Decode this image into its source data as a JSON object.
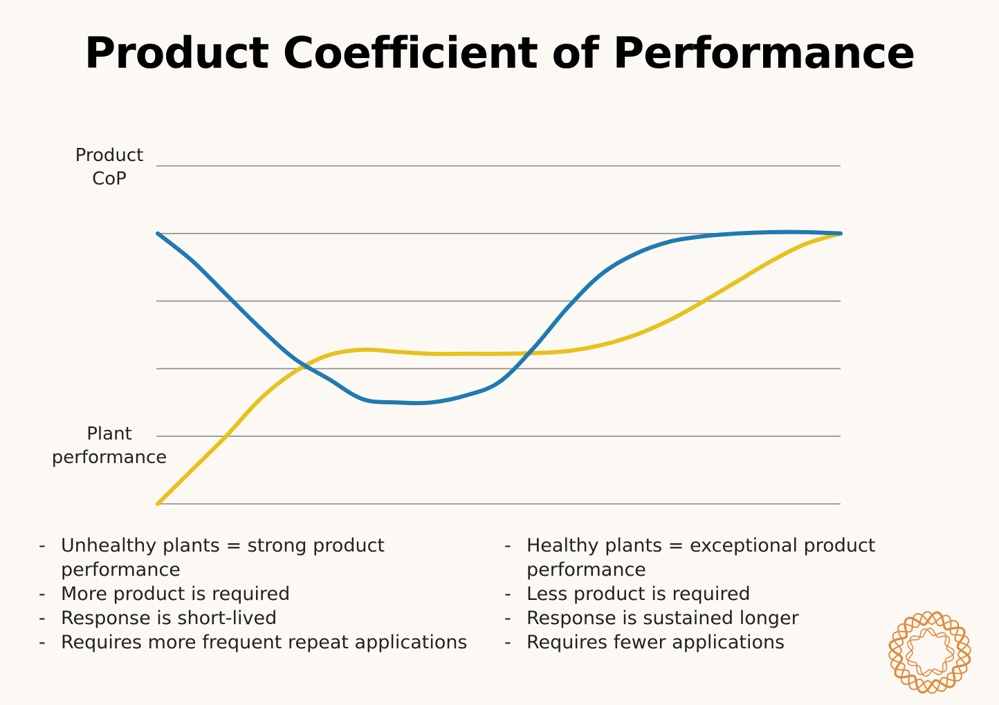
{
  "title": "Product Coefficient of Performance",
  "chart_data": {
    "type": "line",
    "y_top_label": "Product CoP",
    "y_bottom_label": "Plant performance",
    "ylim": [
      0,
      5
    ],
    "xlim": [
      0,
      10
    ],
    "grid": true,
    "gridlines": [
      1,
      2,
      3,
      4,
      5
    ],
    "series": [
      {
        "name": "Product CoP",
        "color": "#1f7ab0",
        "x": [
          0,
          0.5,
          1,
          1.5,
          2,
          2.5,
          3,
          3.5,
          4,
          4.5,
          5,
          5.5,
          6,
          6.5,
          7,
          7.5,
          8,
          8.5,
          9,
          9.5,
          10
        ],
        "y": [
          4.0,
          3.6,
          3.1,
          2.6,
          2.15,
          1.85,
          1.55,
          1.5,
          1.5,
          1.6,
          1.8,
          2.3,
          2.9,
          3.4,
          3.7,
          3.88,
          3.96,
          4.0,
          4.02,
          4.02,
          4.0
        ]
      },
      {
        "name": "Plant performance",
        "color": "#e8c11c",
        "x": [
          0,
          0.5,
          1,
          1.5,
          2,
          2.5,
          3,
          3.5,
          4,
          4.5,
          5,
          5.5,
          6,
          6.5,
          7,
          7.5,
          8,
          8.5,
          9,
          9.5,
          10
        ],
        "y": [
          0.0,
          0.5,
          1.0,
          1.55,
          1.95,
          2.2,
          2.28,
          2.25,
          2.22,
          2.22,
          2.22,
          2.23,
          2.26,
          2.35,
          2.5,
          2.72,
          3.0,
          3.3,
          3.6,
          3.85,
          4.0
        ]
      }
    ]
  },
  "notes_left": [
    "Unhealthy plants = strong product performance",
    "More product is required",
    "Response is short-lived",
    "Requires more frequent repeat applications"
  ],
  "notes_right": [
    "Healthy plants = exceptional product performance",
    "Less product is required",
    "Response is sustained longer",
    "Requires fewer applications"
  ],
  "colors": {
    "background": "#fcf9f5",
    "grid": "#8a8a8a",
    "logo": "#e08a3a"
  },
  "logo_icon": "flower-ring-logo-icon"
}
